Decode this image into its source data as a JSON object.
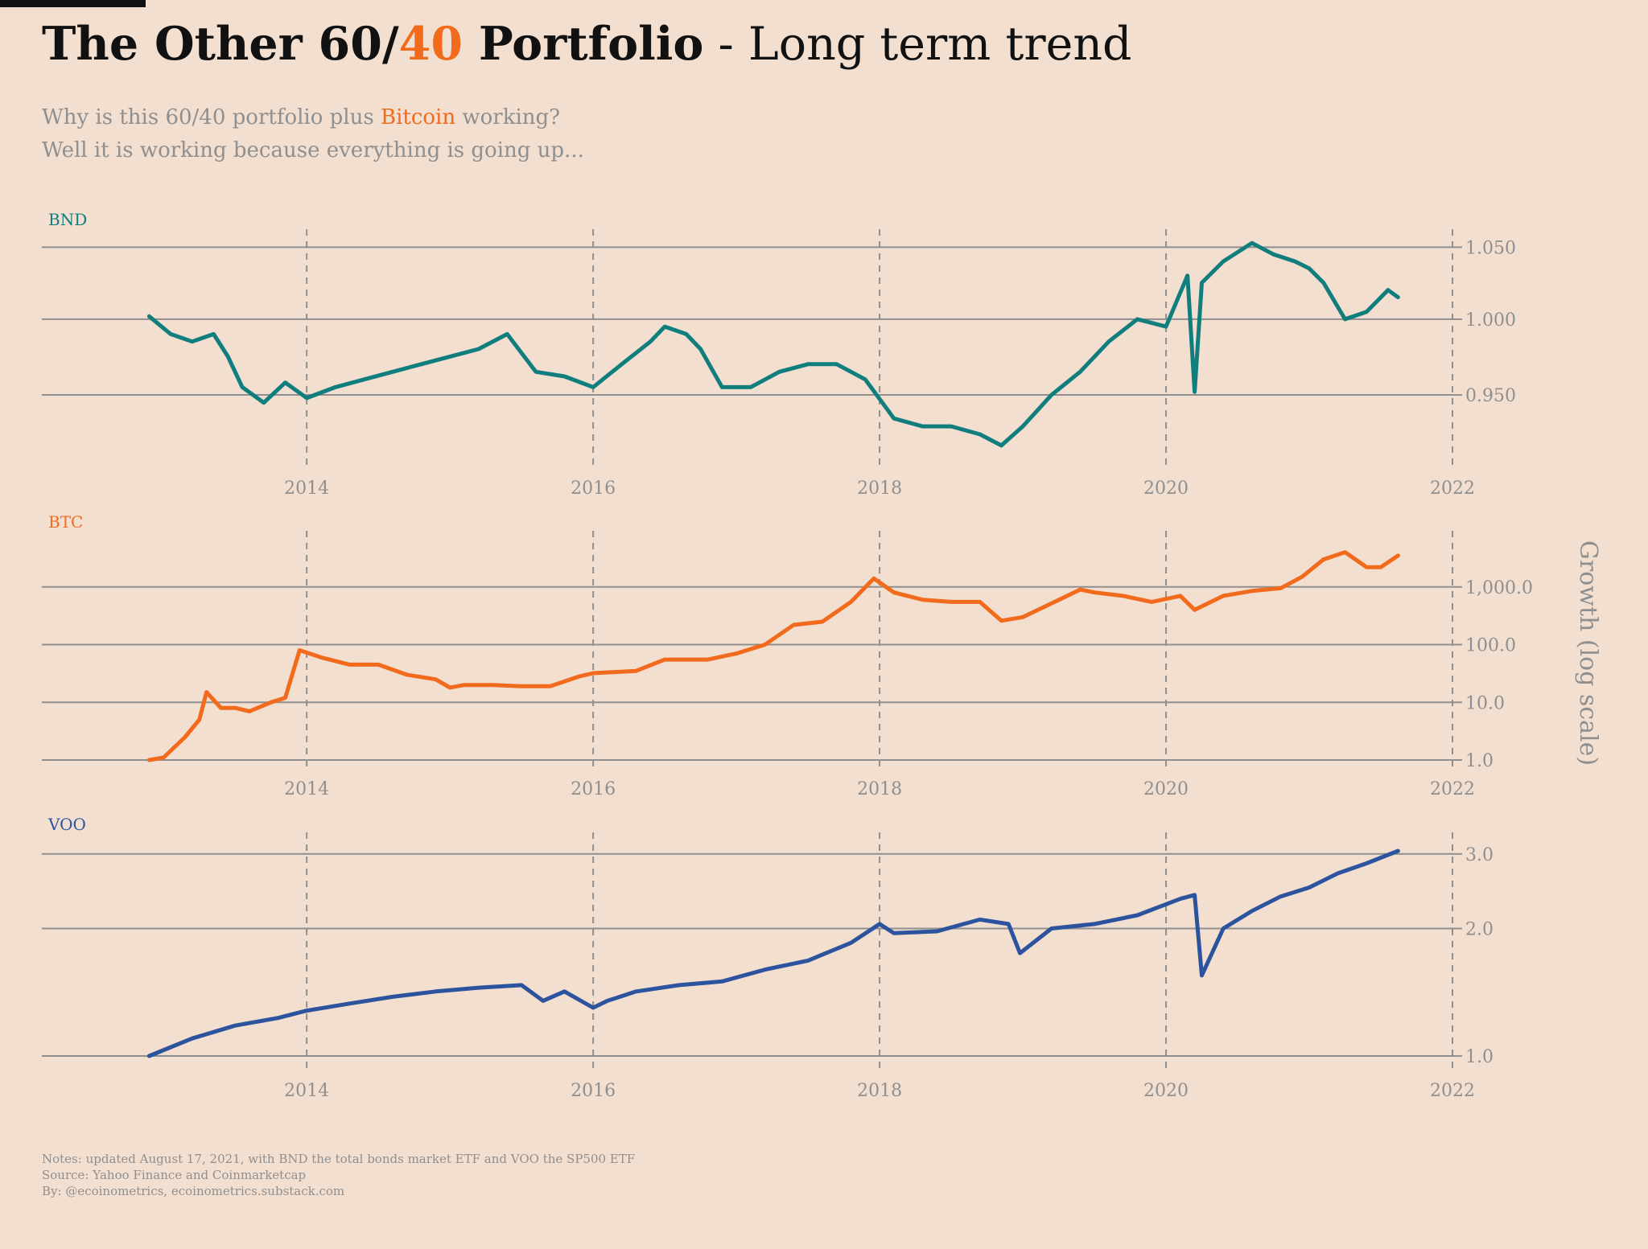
{
  "title": {
    "part1": "The Other 60/",
    "part2": "40",
    "part3": " Portfolio",
    "part4": " - Long term trend"
  },
  "subtitle": {
    "line1_a": "Why is this 60/40 portfolio plus ",
    "line1_b": "Bitcoin",
    "line1_c": " working?",
    "line2": "Well it is working because everything is going up..."
  },
  "y_axis_label": "Growth (log scale)",
  "notes": [
    "Notes: updated August 17, 2021, with BND the total bonds market ETF and VOO the SP500 ETF",
    "Source: Yahoo Finance and Coinmarketcap",
    "By: @ecoinometrics, ecoinometrics.substack.com"
  ],
  "colors": {
    "background": "#f2dfd0",
    "bnd": "#117e7e",
    "btc": "#f26a1b",
    "voo": "#2c539e",
    "grid": "#8f8f8f",
    "text": "#8f8f8f"
  },
  "chart_data": [
    {
      "type": "line",
      "panel_label": "BND",
      "scale": "log",
      "xlim": [
        2012.6,
        2022
      ],
      "ylim": [
        0.91,
        1.06
      ],
      "x_ticks": [
        "2014",
        "2016",
        "2018",
        "2020",
        "2022"
      ],
      "y_ticks": [
        0.95,
        1.0,
        1.05
      ],
      "y_tick_labels": [
        "0.950",
        "1.000",
        "1.050"
      ],
      "series": [
        {
          "x": [
            2012.9,
            2013.05,
            2013.2,
            2013.35,
            2013.45,
            2013.55,
            2013.7,
            2013.85,
            2014.0,
            2014.2,
            2014.4,
            2014.6,
            2014.8,
            2015.0,
            2015.2,
            2015.4,
            2015.6,
            2015.8,
            2016.0,
            2016.2,
            2016.4,
            2016.5,
            2016.65,
            2016.75,
            2016.9,
            2017.1,
            2017.3,
            2017.5,
            2017.7,
            2017.9,
            2018.1,
            2018.3,
            2018.5,
            2018.7,
            2018.85,
            2019.0,
            2019.2,
            2019.4,
            2019.6,
            2019.8,
            2020.0,
            2020.15,
            2020.2,
            2020.25,
            2020.4,
            2020.6,
            2020.75,
            2020.9,
            2021.0,
            2021.1,
            2021.25,
            2021.4,
            2021.55,
            2021.62
          ],
          "y": [
            1.002,
            0.99,
            0.985,
            0.99,
            0.975,
            0.955,
            0.945,
            0.958,
            0.948,
            0.955,
            0.96,
            0.965,
            0.97,
            0.975,
            0.98,
            0.99,
            0.965,
            0.962,
            0.955,
            0.97,
            0.985,
            0.995,
            0.99,
            0.98,
            0.955,
            0.955,
            0.965,
            0.97,
            0.97,
            0.96,
            0.935,
            0.93,
            0.93,
            0.925,
            0.918,
            0.93,
            0.95,
            0.965,
            0.985,
            1.0,
            0.995,
            1.03,
            0.952,
            1.025,
            1.04,
            1.053,
            1.045,
            1.04,
            1.035,
            1.025,
            1.0,
            1.005,
            1.02,
            1.015
          ]
        }
      ]
    },
    {
      "type": "line",
      "panel_label": "BTC",
      "scale": "log",
      "xlim": [
        2012.6,
        2022
      ],
      "ylim": [
        1,
        8000
      ],
      "x_ticks": [
        "2014",
        "2016",
        "2018",
        "2020",
        "2022"
      ],
      "y_ticks": [
        1,
        10,
        100,
        1000
      ],
      "y_tick_labels": [
        "1.0",
        "10.0",
        "100.0",
        "1,000.0"
      ],
      "series": [
        {
          "x": [
            2012.9,
            2013.0,
            2013.15,
            2013.25,
            2013.3,
            2013.4,
            2013.5,
            2013.6,
            2013.75,
            2013.85,
            2013.95,
            2014.1,
            2014.3,
            2014.5,
            2014.7,
            2014.9,
            2015.0,
            2015.1,
            2015.3,
            2015.5,
            2015.7,
            2015.9,
            2016.0,
            2016.3,
            2016.5,
            2016.8,
            2017.0,
            2017.2,
            2017.4,
            2017.6,
            2017.8,
            2017.96,
            2018.1,
            2018.3,
            2018.5,
            2018.7,
            2018.85,
            2019.0,
            2019.2,
            2019.4,
            2019.5,
            2019.7,
            2019.9,
            2020.1,
            2020.2,
            2020.4,
            2020.6,
            2020.8,
            2020.95,
            2021.1,
            2021.25,
            2021.4,
            2021.5,
            2021.62
          ],
          "y": [
            1,
            1.1,
            2.5,
            5,
            15,
            8,
            8,
            7,
            10,
            12,
            80,
            60,
            45,
            45,
            30,
            25,
            18,
            20,
            20,
            19,
            19,
            28,
            32,
            35,
            55,
            55,
            70,
            100,
            220,
            250,
            550,
            1400,
            800,
            600,
            550,
            550,
            260,
            300,
            520,
            900,
            800,
            700,
            550,
            700,
            400,
            700,
            850,
            950,
            1500,
            3000,
            4000,
            2200,
            2200,
            3500
          ]
        }
      ]
    },
    {
      "type": "line",
      "panel_label": "VOO",
      "scale": "log",
      "xlim": [
        2012.6,
        2022
      ],
      "ylim": [
        0.97,
        3.3
      ],
      "x_ticks": [
        "2014",
        "2016",
        "2018",
        "2020",
        "2022"
      ],
      "y_ticks": [
        1.0,
        2.0,
        3.0
      ],
      "y_tick_labels": [
        "1.0",
        "2.0",
        "3.0"
      ],
      "series": [
        {
          "x": [
            2012.9,
            2013.2,
            2013.5,
            2013.8,
            2014.0,
            2014.3,
            2014.6,
            2014.9,
            2015.2,
            2015.5,
            2015.65,
            2015.8,
            2016.0,
            2016.1,
            2016.3,
            2016.6,
            2016.9,
            2017.2,
            2017.5,
            2017.8,
            2018.0,
            2018.1,
            2018.4,
            2018.7,
            2018.9,
            2018.98,
            2019.2,
            2019.5,
            2019.8,
            2020.1,
            2020.2,
            2020.25,
            2020.4,
            2020.6,
            2020.8,
            2021.0,
            2021.2,
            2021.4,
            2021.62
          ],
          "y": [
            1.0,
            1.1,
            1.18,
            1.23,
            1.28,
            1.33,
            1.38,
            1.42,
            1.45,
            1.47,
            1.35,
            1.42,
            1.3,
            1.35,
            1.42,
            1.47,
            1.5,
            1.6,
            1.68,
            1.85,
            2.05,
            1.95,
            1.97,
            2.1,
            2.05,
            1.75,
            2.0,
            2.05,
            2.15,
            2.35,
            2.4,
            1.55,
            2.0,
            2.2,
            2.38,
            2.5,
            2.7,
            2.85,
            3.05
          ]
        }
      ]
    }
  ]
}
